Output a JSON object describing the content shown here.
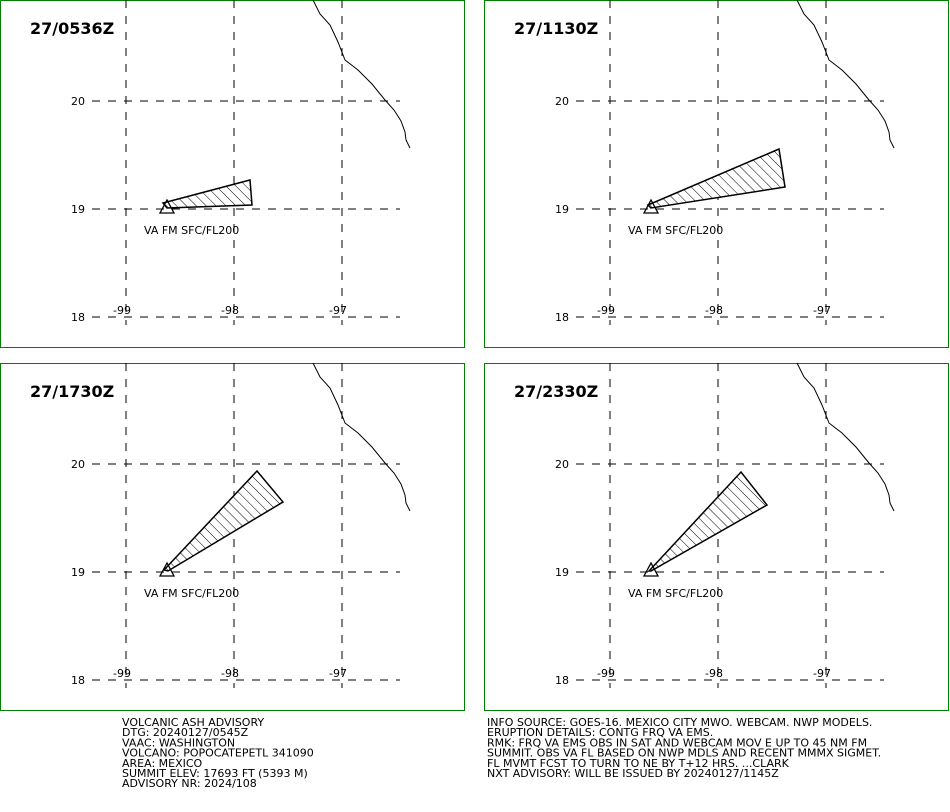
{
  "panels": [
    {
      "time": "27/0536Z",
      "lat_labels": [
        "20",
        "19",
        "18"
      ],
      "lon_labels": [
        "-99",
        "-98",
        "-97"
      ],
      "ash_label": "VA FM SFC/FL200"
    },
    {
      "time": "27/1130Z",
      "lat_labels": [
        "20",
        "19",
        "18"
      ],
      "lon_labels": [
        "-99",
        "-98",
        "-97"
      ],
      "ash_label": "VA FM SFC/FL200"
    },
    {
      "time": "27/1730Z",
      "lat_labels": [
        "20",
        "19",
        "18"
      ],
      "lon_labels": [
        "-99",
        "-98",
        "-97"
      ],
      "ash_label": "VA FM SFC/FL200"
    },
    {
      "time": "27/2330Z",
      "lat_labels": [
        "20",
        "19",
        "18"
      ],
      "lon_labels": [
        "-99",
        "-98",
        "-97"
      ],
      "ash_label": "VA FM SFC/FL200"
    }
  ],
  "advisory_left": [
    "VOLCANIC ASH ADVISORY",
    "DTG: 20240127/0545Z",
    "VAAC: WASHINGTON",
    "VOLCANO: POPOCATEPETL 341090",
    "AREA: MEXICO",
    "SUMMIT ELEV: 17693 FT (5393 M)",
    "ADVISORY NR: 2024/108"
  ],
  "advisory_right": [
    "INFO SOURCE: GOES-16. MEXICO CITY MWO. WEBCAM. NWP MODELS.",
    "ERUPTION DETAILS: CONTG FRQ VA EMS.",
    "RMK: FRQ VA EMS OBS IN SAT AND WEBCAM MOV E UP TO 45 NM FM",
    "SUMMIT. OBS VA FL BASED ON NWP MDLS AND RECENT MMMX SIGMET.",
    "FL MVMT FCST TO TURN TO NE BY T+12 HRS. ...CLARK",
    "NXT ADVISORY: WILL BE ISSUED BY 20240127/1145Z"
  ]
}
